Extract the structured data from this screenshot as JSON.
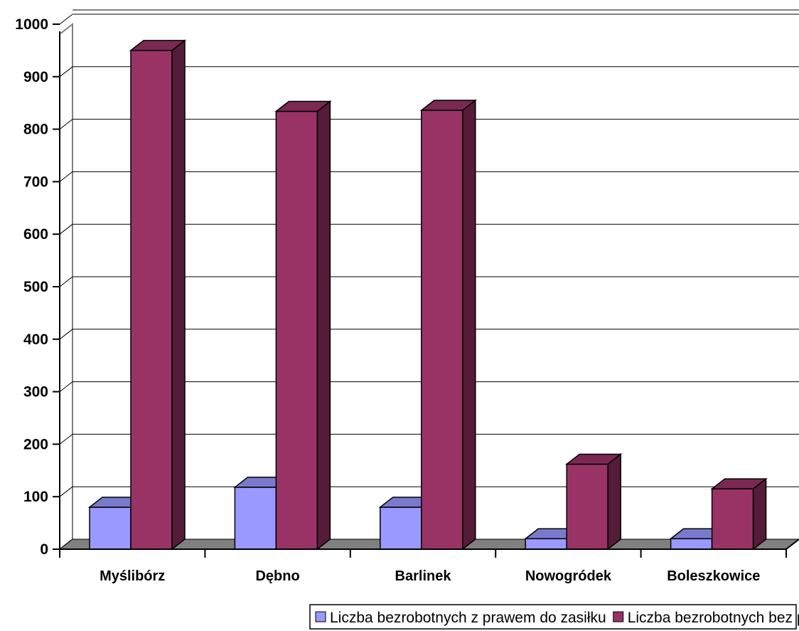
{
  "chart_data": {
    "type": "bar",
    "categories": [
      "Myślibórz",
      "Dębno",
      "Barlinek",
      "Nowogródek",
      "Boleszkowice"
    ],
    "series": [
      {
        "name": "Liczba bezrobotnych z prawem do zasiłku",
        "values": [
          80,
          118,
          80,
          20,
          20
        ],
        "color": "#9999ff"
      },
      {
        "name": "Liczba bezrobotnych bez prawa do zasiłku",
        "values": [
          950,
          834,
          836,
          162,
          115
        ],
        "color": "#993366"
      }
    ],
    "ylim": [
      0,
      1000
    ],
    "yticks": [
      "0",
      "100",
      "200",
      "300",
      "400",
      "500",
      "600",
      "700",
      "800",
      "900",
      "1000"
    ],
    "grid": true,
    "legend_position": "bottom",
    "style": "3d-clustered-column"
  }
}
